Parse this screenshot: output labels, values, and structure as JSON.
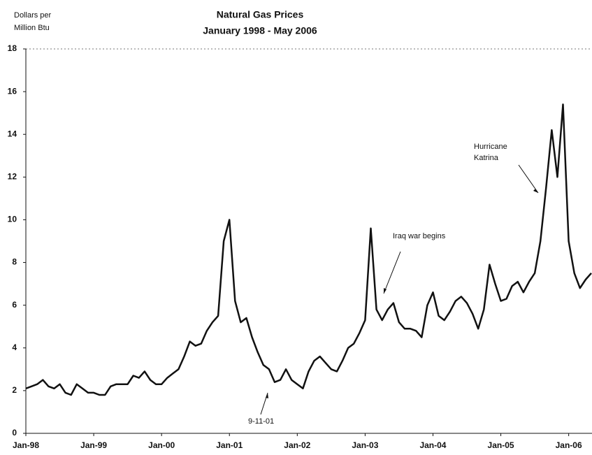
{
  "chart_data": {
    "type": "line",
    "title": "Natural Gas Prices",
    "subtitle": "January 1998 - May 2006",
    "ylabel": [
      "Dollars per",
      "Million Btu"
    ],
    "annotations": [
      {
        "text": [
          "Hurricane",
          "Katrina"
        ]
      },
      {
        "text": [
          "Iraq war begins"
        ]
      },
      {
        "text": [
          "9-11-01"
        ]
      }
    ],
    "x": [
      "1998-01",
      "1998-02",
      "1998-03",
      "1998-04",
      "1998-05",
      "1998-06",
      "1998-07",
      "1998-08",
      "1998-09",
      "1998-10",
      "1998-11",
      "1998-12",
      "1999-01",
      "1999-02",
      "1999-03",
      "1999-04",
      "1999-05",
      "1999-06",
      "1999-07",
      "1999-08",
      "1999-09",
      "1999-10",
      "1999-11",
      "1999-12",
      "2000-01",
      "2000-02",
      "2000-03",
      "2000-04",
      "2000-05",
      "2000-06",
      "2000-07",
      "2000-08",
      "2000-09",
      "2000-10",
      "2000-11",
      "2000-12",
      "2001-01",
      "2001-02",
      "2001-03",
      "2001-04",
      "2001-05",
      "2001-06",
      "2001-07",
      "2001-08",
      "2001-09",
      "2001-10",
      "2001-11",
      "2001-12",
      "2002-01",
      "2002-02",
      "2002-03",
      "2002-04",
      "2002-05",
      "2002-06",
      "2002-07",
      "2002-08",
      "2002-09",
      "2002-10",
      "2002-11",
      "2002-12",
      "2003-01",
      "2003-02",
      "2003-03",
      "2003-04",
      "2003-05",
      "2003-06",
      "2003-07",
      "2003-08",
      "2003-09",
      "2003-10",
      "2003-11",
      "2003-12",
      "2004-01",
      "2004-02",
      "2004-03",
      "2004-04",
      "2004-05",
      "2004-06",
      "2004-07",
      "2004-08",
      "2004-09",
      "2004-10",
      "2004-11",
      "2004-12",
      "2005-01",
      "2005-02",
      "2005-03",
      "2005-04",
      "2005-05",
      "2005-06",
      "2005-07",
      "2005-08",
      "2005-09",
      "2005-10",
      "2005-11",
      "2005-12",
      "2006-01",
      "2006-02",
      "2006-03",
      "2006-04",
      "2006-05"
    ],
    "series": [
      {
        "name": "Natural Gas Price",
        "color": "#111111",
        "values": [
          2.1,
          2.2,
          2.3,
          2.5,
          2.2,
          2.1,
          2.3,
          1.9,
          1.8,
          2.3,
          2.1,
          1.9,
          1.9,
          1.8,
          1.8,
          2.2,
          2.3,
          2.3,
          2.3,
          2.7,
          2.6,
          2.9,
          2.5,
          2.3,
          2.3,
          2.6,
          2.8,
          3.0,
          3.6,
          4.3,
          4.1,
          4.2,
          4.8,
          5.2,
          5.5,
          9.0,
          10.0,
          6.2,
          5.2,
          5.4,
          4.5,
          3.8,
          3.2,
          3.0,
          2.4,
          2.5,
          3.0,
          2.5,
          2.3,
          2.1,
          2.9,
          3.4,
          3.6,
          3.3,
          3.0,
          2.9,
          3.4,
          4.0,
          4.2,
          4.7,
          5.3,
          9.6,
          5.8,
          5.3,
          5.8,
          6.1,
          5.2,
          4.9,
          4.9,
          4.8,
          4.5,
          6.0,
          6.6,
          5.5,
          5.3,
          5.7,
          6.2,
          6.4,
          6.1,
          5.6,
          4.9,
          5.8,
          7.9,
          7.0,
          6.2,
          6.3,
          6.9,
          7.1,
          6.6,
          7.1,
          7.5,
          9.0,
          11.5,
          14.2,
          12.0,
          15.4,
          9.0,
          7.5,
          6.8,
          7.2,
          7.5
        ]
      }
    ],
    "xlim": [
      "1998-01",
      "2006-05"
    ],
    "xticks": [
      {
        "value": "1998-01",
        "label": "Jan-98"
      },
      {
        "value": "1999-01",
        "label": "Jan-99"
      },
      {
        "value": "2000-01",
        "label": "Jan-00"
      },
      {
        "value": "2001-01",
        "label": "Jan-01"
      },
      {
        "value": "2002-01",
        "label": "Jan-02"
      },
      {
        "value": "2003-01",
        "label": "Jan-03"
      },
      {
        "value": "2004-01",
        "label": "Jan-04"
      },
      {
        "value": "2005-01",
        "label": "Jan-05"
      },
      {
        "value": "2006-01",
        "label": "Jan-06"
      }
    ],
    "ylim": [
      0,
      18
    ],
    "yticks": [
      0,
      2,
      4,
      6,
      8,
      10,
      12,
      14,
      16,
      18
    ],
    "grid": false
  }
}
